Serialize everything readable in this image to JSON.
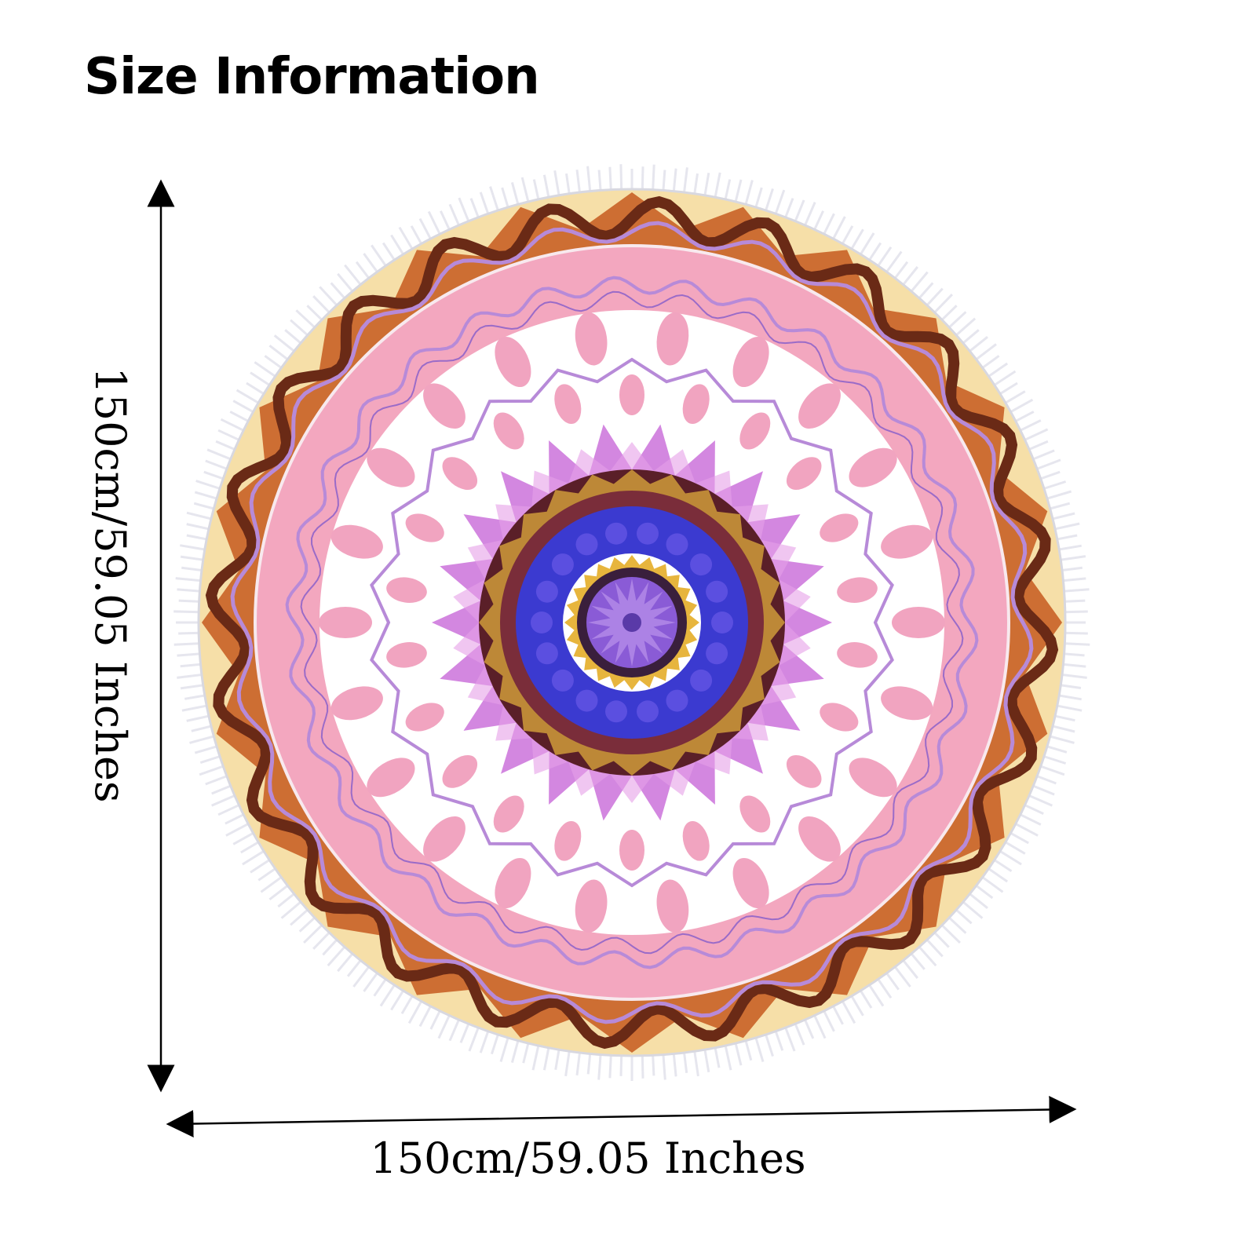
{
  "title": "Size Information",
  "product": {
    "shape": "round",
    "pattern": "mandala",
    "edge": "tassel fringe",
    "palette": {
      "fringe": "#e6e6ee",
      "outer_band_brown": "#6a2a16",
      "outer_band_cream": "#f6dfa8",
      "outer_band_orange": "#c65a1e",
      "pink_ring": "#f3a7bf",
      "white_field": "#ffffff",
      "petal_pink": "#f1a4c0",
      "lavender_lace": "#b78ad8",
      "magenta_star": "#c45fd6",
      "dark_ring": "#5a1f28",
      "blue_ring": "#3b3ad0",
      "gold": "#e7b53d",
      "center_violet": "#8a5bd6"
    }
  },
  "dimensions": {
    "height_label": "150cm/59.05 Inches",
    "width_label": "150cm/59.05 Inches"
  },
  "icons": {
    "height_arrow": "double-headed-vertical-arrow",
    "width_arrow": "double-headed-horizontal-arrow"
  }
}
